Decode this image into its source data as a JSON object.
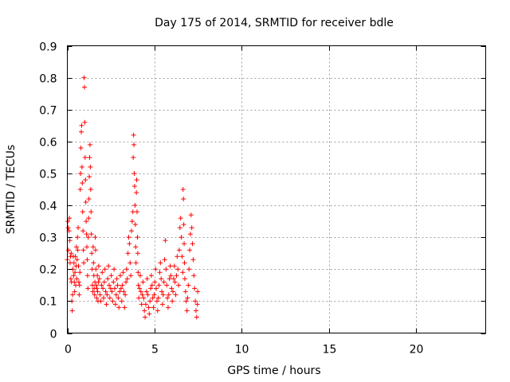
{
  "chart_data": {
    "type": "scatter",
    "title": "Day 175 of 2014, SRMTID for receiver bdle",
    "xlabel": "GPS time / hours",
    "ylabel": "SRMTID / TECUs",
    "xlim": [
      0,
      24
    ],
    "ylim": [
      0,
      0.9
    ],
    "xticks": [
      0,
      5,
      10,
      15,
      20
    ],
    "xtick_labels": [
      "0",
      "5",
      "10",
      "15",
      "20"
    ],
    "yticks": [
      0,
      0.1,
      0.2,
      0.3,
      0.4,
      0.5,
      0.6,
      0.7,
      0.8,
      0.9
    ],
    "ytick_labels": [
      "0",
      "0.1",
      "0.2",
      "0.3",
      "0.4",
      "0.5",
      "0.6",
      "0.7",
      "0.8",
      "0.9"
    ],
    "grid": true,
    "marker": "+",
    "marker_color": "#ff0000",
    "series": [
      {
        "name": "SRMTID",
        "points": [
          [
            0.0,
            0.23
          ],
          [
            0.03,
            0.35
          ],
          [
            0.05,
            0.33
          ],
          [
            0.07,
            0.26
          ],
          [
            0.1,
            0.32
          ],
          [
            0.12,
            0.36
          ],
          [
            0.14,
            0.29
          ],
          [
            0.16,
            0.22
          ],
          [
            0.18,
            0.24
          ],
          [
            0.2,
            0.17
          ],
          [
            0.22,
            0.25
          ],
          [
            0.24,
            0.16
          ],
          [
            0.26,
            0.1
          ],
          [
            0.28,
            0.07
          ],
          [
            0.3,
            0.12
          ],
          [
            0.32,
            0.2
          ],
          [
            0.34,
            0.24
          ],
          [
            0.36,
            0.18
          ],
          [
            0.38,
            0.22
          ],
          [
            0.4,
            0.16
          ],
          [
            0.42,
            0.13
          ],
          [
            0.44,
            0.19
          ],
          [
            0.46,
            0.24
          ],
          [
            0.48,
            0.15
          ],
          [
            0.5,
            0.21
          ],
          [
            0.52,
            0.27
          ],
          [
            0.54,
            0.17
          ],
          [
            0.56,
            0.23
          ],
          [
            0.58,
            0.3
          ],
          [
            0.6,
            0.26
          ],
          [
            0.62,
            0.33
          ],
          [
            0.64,
            0.21
          ],
          [
            0.66,
            0.16
          ],
          [
            0.68,
            0.12
          ],
          [
            0.7,
            0.15
          ],
          [
            0.72,
            0.19
          ],
          [
            0.74,
            0.45
          ],
          [
            0.76,
            0.5
          ],
          [
            0.78,
            0.58
          ],
          [
            0.8,
            0.63
          ],
          [
            0.82,
            0.65
          ],
          [
            0.84,
            0.52
          ],
          [
            0.86,
            0.47
          ],
          [
            0.88,
            0.38
          ],
          [
            0.9,
            0.32
          ],
          [
            0.92,
            0.26
          ],
          [
            0.94,
            0.22
          ],
          [
            0.96,
            0.8
          ],
          [
            0.98,
            0.77
          ],
          [
            1.0,
            0.66
          ],
          [
            1.02,
            0.55
          ],
          [
            1.04,
            0.48
          ],
          [
            1.06,
            0.41
          ],
          [
            1.08,
            0.35
          ],
          [
            1.1,
            0.31
          ],
          [
            1.12,
            0.27
          ],
          [
            1.14,
            0.23
          ],
          [
            1.16,
            0.18
          ],
          [
            1.18,
            0.14
          ],
          [
            1.2,
            0.3
          ],
          [
            1.22,
            0.36
          ],
          [
            1.24,
            0.42
          ],
          [
            1.26,
            0.49
          ],
          [
            1.28,
            0.55
          ],
          [
            1.3,
            0.59
          ],
          [
            1.32,
            0.52
          ],
          [
            1.34,
            0.45
          ],
          [
            1.36,
            0.38
          ],
          [
            1.38,
            0.31
          ],
          [
            1.4,
            0.25
          ],
          [
            1.42,
            0.2
          ],
          [
            1.44,
            0.15
          ],
          [
            1.46,
            0.13
          ],
          [
            1.48,
            0.27
          ],
          [
            1.5,
            0.22
          ],
          [
            1.52,
            0.18
          ],
          [
            1.54,
            0.14
          ],
          [
            1.56,
            0.12
          ],
          [
            1.58,
            0.16
          ],
          [
            1.6,
            0.3
          ],
          [
            1.62,
            0.26
          ],
          [
            1.64,
            0.2
          ],
          [
            1.66,
            0.15
          ],
          [
            1.68,
            0.11
          ],
          [
            1.7,
            0.14
          ],
          [
            1.72,
            0.18
          ],
          [
            1.74,
            0.13
          ],
          [
            1.76,
            0.1
          ],
          [
            1.78,
            0.16
          ],
          [
            1.8,
            0.21
          ],
          [
            1.84,
            0.17
          ],
          [
            1.88,
            0.12
          ],
          [
            1.92,
            0.1
          ],
          [
            1.96,
            0.15
          ],
          [
            2.0,
            0.19
          ],
          [
            2.04,
            0.14
          ],
          [
            2.08,
            0.11
          ],
          [
            2.12,
            0.16
          ],
          [
            2.16,
            0.2
          ],
          [
            2.2,
            0.13
          ],
          [
            2.24,
            0.09
          ],
          [
            2.28,
            0.12
          ],
          [
            2.32,
            0.17
          ],
          [
            2.36,
            0.21
          ],
          [
            2.4,
            0.15
          ],
          [
            2.44,
            0.11
          ],
          [
            2.48,
            0.14
          ],
          [
            2.52,
            0.18
          ],
          [
            2.56,
            0.13
          ],
          [
            2.6,
            0.1
          ],
          [
            2.64,
            0.16
          ],
          [
            2.68,
            0.2
          ],
          [
            2.72,
            0.14
          ],
          [
            2.76,
            0.09
          ],
          [
            2.8,
            0.12
          ],
          [
            2.84,
            0.17
          ],
          [
            2.88,
            0.15
          ],
          [
            2.92,
            0.11
          ],
          [
            2.96,
            0.08
          ],
          [
            3.0,
            0.13
          ],
          [
            3.04,
            0.18
          ],
          [
            3.08,
            0.14
          ],
          [
            3.12,
            0.1
          ],
          [
            3.16,
            0.15
          ],
          [
            3.2,
            0.19
          ],
          [
            3.24,
            0.13
          ],
          [
            3.28,
            0.08
          ],
          [
            3.32,
            0.12
          ],
          [
            3.36,
            0.16
          ],
          [
            3.4,
            0.2
          ],
          [
            3.44,
            0.17
          ],
          [
            3.48,
            0.25
          ],
          [
            3.52,
            0.3
          ],
          [
            3.56,
            0.28
          ],
          [
            3.6,
            0.22
          ],
          [
            3.64,
            0.18
          ],
          [
            3.68,
            0.32
          ],
          [
            3.72,
            0.35
          ],
          [
            3.76,
            0.38
          ],
          [
            3.78,
            0.55
          ],
          [
            3.8,
            0.62
          ],
          [
            3.82,
            0.59
          ],
          [
            3.84,
            0.5
          ],
          [
            3.86,
            0.46
          ],
          [
            3.88,
            0.4
          ],
          [
            3.9,
            0.34
          ],
          [
            3.92,
            0.27
          ],
          [
            3.94,
            0.22
          ],
          [
            3.96,
            0.44
          ],
          [
            3.98,
            0.48
          ],
          [
            4.0,
            0.38
          ],
          [
            4.02,
            0.3
          ],
          [
            4.04,
            0.25
          ],
          [
            4.06,
            0.19
          ],
          [
            4.08,
            0.15
          ],
          [
            4.1,
            0.11
          ],
          [
            4.14,
            0.14
          ],
          [
            4.18,
            0.18
          ],
          [
            4.22,
            0.13
          ],
          [
            4.26,
            0.09
          ],
          [
            4.3,
            0.12
          ],
          [
            4.34,
            0.16
          ],
          [
            4.38,
            0.11
          ],
          [
            4.42,
            0.07
          ],
          [
            4.46,
            0.05
          ],
          [
            4.5,
            0.09
          ],
          [
            4.54,
            0.13
          ],
          [
            4.58,
            0.17
          ],
          [
            4.62,
            0.12
          ],
          [
            4.66,
            0.08
          ],
          [
            4.7,
            0.06
          ],
          [
            4.74,
            0.1
          ],
          [
            4.78,
            0.14
          ],
          [
            4.82,
            0.18
          ],
          [
            4.86,
            0.15
          ],
          [
            4.9,
            0.11
          ],
          [
            4.94,
            0.08
          ],
          [
            4.98,
            0.12
          ],
          [
            5.02,
            0.16
          ],
          [
            5.06,
            0.2
          ],
          [
            5.1,
            0.14
          ],
          [
            5.14,
            0.1
          ],
          [
            5.18,
            0.07
          ],
          [
            5.22,
            0.11
          ],
          [
            5.26,
            0.15
          ],
          [
            5.3,
            0.19
          ],
          [
            5.34,
            0.22
          ],
          [
            5.38,
            0.17
          ],
          [
            5.42,
            0.13
          ],
          [
            5.46,
            0.09
          ],
          [
            5.5,
            0.12
          ],
          [
            5.54,
            0.16
          ],
          [
            5.58,
            0.23
          ],
          [
            5.62,
            0.29
          ],
          [
            5.66,
            0.2
          ],
          [
            5.7,
            0.15
          ],
          [
            5.74,
            0.11
          ],
          [
            5.78,
            0.08
          ],
          [
            5.82,
            0.12
          ],
          [
            5.86,
            0.17
          ],
          [
            5.9,
            0.21
          ],
          [
            5.94,
            0.18
          ],
          [
            5.98,
            0.14
          ],
          [
            6.02,
            0.1
          ],
          [
            6.06,
            0.13
          ],
          [
            6.1,
            0.17
          ],
          [
            6.14,
            0.21
          ],
          [
            6.18,
            0.16
          ],
          [
            6.22,
            0.12
          ],
          [
            6.26,
            0.18
          ],
          [
            6.3,
            0.24
          ],
          [
            6.34,
            0.2
          ],
          [
            6.38,
            0.15
          ],
          [
            6.42,
            0.26
          ],
          [
            6.46,
            0.33
          ],
          [
            6.5,
            0.36
          ],
          [
            6.54,
            0.3
          ],
          [
            6.58,
            0.24
          ],
          [
            6.62,
            0.19
          ],
          [
            6.64,
            0.45
          ],
          [
            6.66,
            0.42
          ],
          [
            6.68,
            0.34
          ],
          [
            6.7,
            0.28
          ],
          [
            6.72,
            0.22
          ],
          [
            6.74,
            0.17
          ],
          [
            6.78,
            0.13
          ],
          [
            6.82,
            0.1
          ],
          [
            6.86,
            0.07
          ],
          [
            6.9,
            0.11
          ],
          [
            6.94,
            0.15
          ],
          [
            6.98,
            0.2
          ],
          [
            7.02,
            0.26
          ],
          [
            7.06,
            0.31
          ],
          [
            7.1,
            0.37
          ],
          [
            7.14,
            0.33
          ],
          [
            7.18,
            0.28
          ],
          [
            7.22,
            0.23
          ],
          [
            7.26,
            0.18
          ],
          [
            7.3,
            0.14
          ],
          [
            7.34,
            0.1
          ],
          [
            7.38,
            0.07
          ],
          [
            7.42,
            0.05
          ],
          [
            7.46,
            0.09
          ],
          [
            7.48,
            0.13
          ]
        ]
      }
    ]
  }
}
